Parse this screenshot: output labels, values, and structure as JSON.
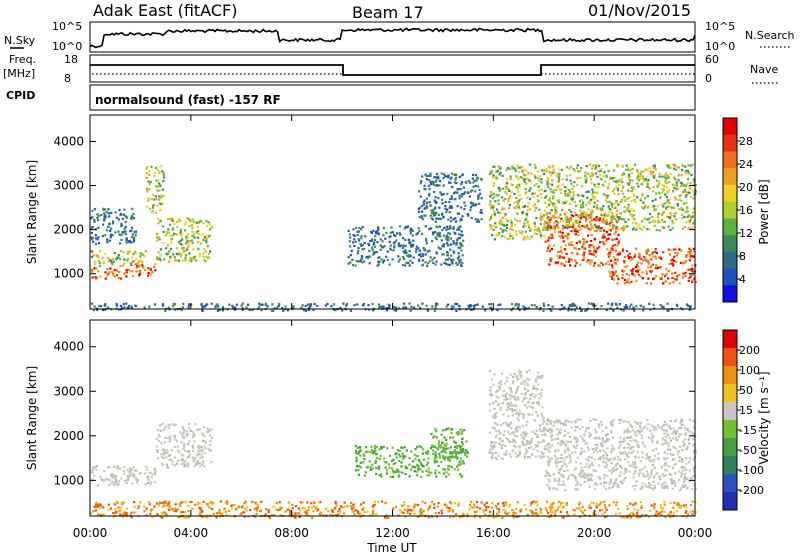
{
  "header": {
    "radar": "Adak East (fitACF)",
    "beam": "Beam 17",
    "date": "01/Nov/2015"
  },
  "top_panels": {
    "nsky_label": "N.Sky",
    "nsky_ticks": [
      "10^5",
      "10^0"
    ],
    "nsearch_label": "N.Search",
    "nsearch_ticks": [
      "10^5",
      "10^0"
    ],
    "freq_label_1": "Freq.",
    "freq_label_2": "[MHz]",
    "freq_ticks": [
      "18",
      "8"
    ],
    "nave_label": "Nave",
    "nave_ticks": [
      "60",
      "0"
    ],
    "cpid_label": "CPID",
    "cpid_text": "normalsound (fast) -157 RF"
  },
  "chart_data": [
    {
      "type": "heatmap",
      "name": "power",
      "ylabel": "Slant Range [km]",
      "yticks": [
        "4000",
        "3000",
        "2000",
        "1000"
      ],
      "ylim": [
        200,
        4600
      ],
      "xlim": [
        0,
        24
      ],
      "colorbar": {
        "label": "Power [dB]",
        "ticks": [
          "28",
          "24",
          "20",
          "16",
          "12",
          "8",
          "4"
        ],
        "colors": [
          "#1010e0",
          "#2050c0",
          "#306a88",
          "#3a8a5a",
          "#60b040",
          "#b0d030",
          "#f0d020",
          "#f0a020",
          "#f07020",
          "#e83010",
          "#e00000"
        ]
      },
      "echo_regions": [
        {
          "t0": 0.0,
          "t1": 1.3,
          "r0": 900,
          "r1": 1150,
          "level": "high"
        },
        {
          "t0": 1.3,
          "t1": 2.6,
          "r0": 950,
          "r1": 1250,
          "level": "high"
        },
        {
          "t0": 0.0,
          "t1": 2.2,
          "r0": 1200,
          "r1": 1550,
          "level": "mid"
        },
        {
          "t0": 2.6,
          "t1": 4.8,
          "r0": 1300,
          "r1": 2300,
          "level": "mid"
        },
        {
          "t0": 0.0,
          "t1": 1.8,
          "r0": 1700,
          "r1": 2500,
          "level": "low"
        },
        {
          "t0": 2.2,
          "t1": 2.9,
          "r0": 2400,
          "r1": 3500,
          "level": "mid"
        },
        {
          "t0": 10.2,
          "t1": 14.8,
          "r0": 1200,
          "r1": 2100,
          "level": "low"
        },
        {
          "t0": 13.0,
          "t1": 15.5,
          "r0": 2200,
          "r1": 3300,
          "level": "low"
        },
        {
          "t0": 15.8,
          "t1": 18.0,
          "r0": 1800,
          "r1": 3500,
          "level": "mid"
        },
        {
          "t0": 18.0,
          "t1": 21.0,
          "r0": 1200,
          "r1": 2400,
          "level": "high"
        },
        {
          "t0": 20.5,
          "t1": 24.0,
          "r0": 800,
          "r1": 1600,
          "level": "high"
        },
        {
          "t0": 18.0,
          "t1": 24.0,
          "r0": 2000,
          "r1": 3500,
          "level": "mid"
        },
        {
          "t0": 0.0,
          "t1": 24.0,
          "r0": 180,
          "r1": 350,
          "level": "low"
        }
      ]
    },
    {
      "type": "heatmap",
      "name": "velocity",
      "ylabel": "Slant Range [km]",
      "yticks": [
        "4000",
        "3000",
        "2000",
        "1000"
      ],
      "ylim": [
        200,
        4600
      ],
      "xlim": [
        0,
        24
      ],
      "xticks": [
        "00:00",
        "04:00",
        "08:00",
        "12:00",
        "16:00",
        "20:00",
        "00:00"
      ],
      "xlabel": "Time UT",
      "colorbar": {
        "label": "Velocity [m s⁻¹]",
        "ticks": [
          "200",
          "100",
          "50",
          "15",
          "-15",
          "-50",
          "-100",
          "-200"
        ],
        "colors": [
          "#2030b0",
          "#3050c0",
          "#308060",
          "#40a040",
          "#70c030",
          "#c8c8c0",
          "#f0c020",
          "#f09010",
          "#f05010",
          "#e00000"
        ]
      },
      "echo_regions": [
        {
          "t0": 0.0,
          "t1": 2.6,
          "r0": 900,
          "r1": 1350,
          "vel": "gray"
        },
        {
          "t0": 2.6,
          "t1": 4.8,
          "r0": 1300,
          "r1": 2300,
          "vel": "gray"
        },
        {
          "t0": 10.5,
          "t1": 14.8,
          "r0": 1100,
          "r1": 1800,
          "vel": "green"
        },
        {
          "t0": 13.5,
          "t1": 15.0,
          "r0": 1500,
          "r1": 2200,
          "vel": "green"
        },
        {
          "t0": 15.8,
          "t1": 18.0,
          "r0": 1500,
          "r1": 3500,
          "vel": "gray"
        },
        {
          "t0": 18.0,
          "t1": 24.0,
          "r0": 800,
          "r1": 2400,
          "vel": "gray"
        },
        {
          "t0": 0.0,
          "t1": 24.0,
          "r0": 180,
          "r1": 550,
          "vel": "orange"
        }
      ]
    }
  ]
}
